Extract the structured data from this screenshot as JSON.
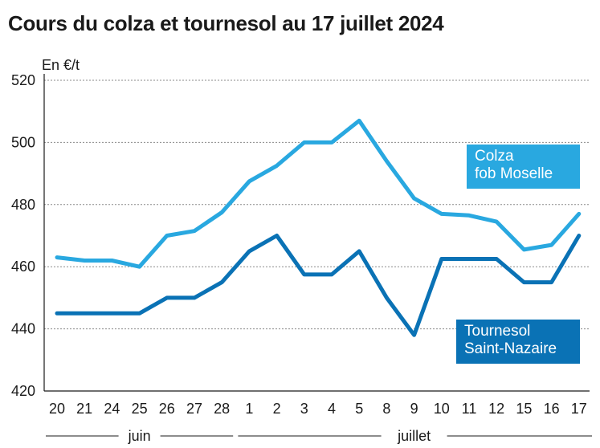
{
  "title": "Cours du colza et tournesol au 17 juillet 2024",
  "colors": {
    "colza": "#29a8e0",
    "tournesol": "#0a72b5",
    "grid": "#8a8a8a",
    "axis": "#1a1a1a"
  },
  "chart_data": {
    "type": "line",
    "title": "Cours du colza et tournesol au 17 juillet 2024",
    "ylabel": "En €/t",
    "ylim": [
      420,
      520
    ],
    "yticks": [
      420,
      440,
      460,
      480,
      500,
      520
    ],
    "grid": true,
    "categories": [
      "20",
      "21",
      "24",
      "25",
      "26",
      "27",
      "28",
      "1",
      "2",
      "3",
      "4",
      "5",
      "8",
      "9",
      "10",
      "11",
      "12",
      "15",
      "16",
      "17"
    ],
    "month_groups": [
      {
        "label": "juin",
        "start": 0,
        "end": 6
      },
      {
        "label": "juillet",
        "start": 7,
        "end": 19
      }
    ],
    "series": [
      {
        "key": "colza",
        "legend": [
          "Colza",
          "fob Moselle"
        ],
        "values": [
          463,
          462,
          462,
          460,
          470,
          471.5,
          477.5,
          487.5,
          492.5,
          500,
          500,
          507,
          494,
          482,
          477,
          476.5,
          474.5,
          465.5,
          467,
          477
        ]
      },
      {
        "key": "tournesol",
        "legend": [
          "Tournesol",
          "Saint-Nazaire"
        ],
        "values": [
          445,
          445,
          445,
          445,
          450,
          450,
          455,
          465,
          470,
          457.5,
          457.5,
          465,
          450,
          438,
          462.5,
          462.5,
          462.5,
          455,
          455,
          470
        ]
      }
    ]
  }
}
